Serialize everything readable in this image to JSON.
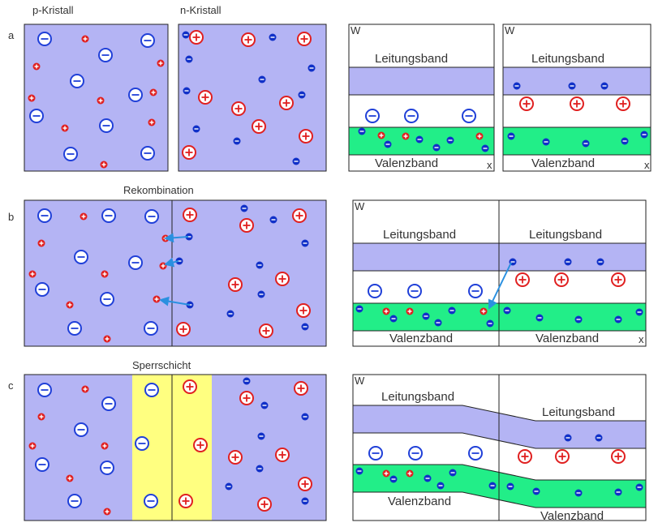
{
  "labels": {
    "p_crystal": "p-Kristall",
    "n_crystal": "n-Kristall",
    "recombination": "Rekombination",
    "depletion": "Sperrschicht",
    "energy_axis": "W",
    "x_axis": "x",
    "conduction_band": "Leitungsband",
    "valence_band": "Valenzband",
    "row_a": "a",
    "row_b": "b",
    "row_c": "c"
  },
  "colors": {
    "crystal_fill": "#b4b4f4",
    "depletion_fill": "#ffff80",
    "valence_fill": "#22ee88",
    "electron": "#1030c8",
    "ion_negative": "#2040d8",
    "hole": "#e02020",
    "ion_positive": "#e02020",
    "arrow": "#2a90e0"
  },
  "legend_symbols": {
    "free_electron": "minus in small filled blue circle",
    "free_hole": "plus in small filled red circle",
    "acceptor_ion": "minus in large blue ring",
    "donor_ion": "plus in large red ring"
  }
}
